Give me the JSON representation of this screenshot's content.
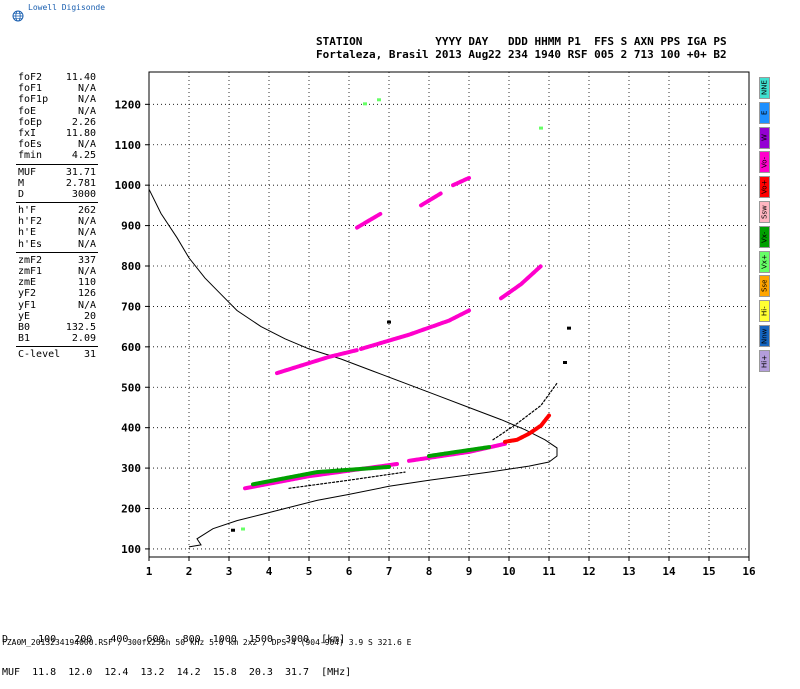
{
  "brand": {
    "name": "Lowell Digisonde"
  },
  "header": {
    "line1": "STATION           YYYY DAY   DDD HHMM P1  FFS S AXN PPS IGA PS",
    "line2": "Fortaleza, Brasil 2013 Aug22 234 1940 RSF 005 2 713 100 +0+ B2"
  },
  "params": [
    {
      "label": "foF2",
      "value": "11.40"
    },
    {
      "label": "foF1",
      "value": "N/A"
    },
    {
      "label": "foF1p",
      "value": "N/A"
    },
    {
      "label": "foE",
      "value": "N/A"
    },
    {
      "label": "foEp",
      "value": "2.26"
    },
    {
      "label": "fxI",
      "value": "11.80"
    },
    {
      "label": "foEs",
      "value": "N/A"
    },
    {
      "label": "fmin",
      "value": "4.25"
    },
    {
      "sep": true
    },
    {
      "label": "MUF",
      "value": "31.71"
    },
    {
      "label": "M",
      "value": "2.781"
    },
    {
      "label": "D",
      "value": "3000"
    },
    {
      "sep": true
    },
    {
      "label": "h'F",
      "value": "262"
    },
    {
      "label": "h'F2",
      "value": "N/A"
    },
    {
      "label": "h'E",
      "value": "N/A"
    },
    {
      "label": "h'Es",
      "value": "N/A"
    },
    {
      "sep": true
    },
    {
      "label": "zmF2",
      "value": "337"
    },
    {
      "label": "zmF1",
      "value": "N/A"
    },
    {
      "label": "zmE",
      "value": "110"
    },
    {
      "label": "yF2",
      "value": "126"
    },
    {
      "label": "yF1",
      "value": "N/A"
    },
    {
      "label": "yE",
      "value": "20"
    },
    {
      "label": "B0",
      "value": "132.5"
    },
    {
      "label": "B1",
      "value": "2.09"
    },
    {
      "sep": true
    },
    {
      "label": "C-level",
      "value": "31"
    }
  ],
  "muf_table": {
    "row1": "D     100   200   400   600   800  1000  1500  3000  [km]",
    "row2": "MUF  11.8  12.0  12.4  13.2  14.2  15.8  20.3  31.7  [MHz]"
  },
  "footer": "FZA0M_2013234194000.RSF / 300fx256h 50 kHz 5.0 km 2x2 / DPS-4 (904-904)   3.9 S 321.6 E",
  "modes": [
    {
      "label": "NNE",
      "color": "#40e0d0"
    },
    {
      "label": "E",
      "color": "#1e90ff"
    },
    {
      "label": "W",
      "color": "#9400d3"
    },
    {
      "label": "Vo-",
      "color": "#ff00cc"
    },
    {
      "label": "Vo+",
      "color": "#ff0000"
    },
    {
      "label": "Ssw",
      "color": "#ffb6c1"
    },
    {
      "label": "Vx-",
      "color": "#00a000"
    },
    {
      "label": "Vx+",
      "color": "#66ff66"
    },
    {
      "label": "Sse",
      "color": "#ffa500"
    },
    {
      "label": "Hi-",
      "color": "#ffff33"
    },
    {
      "label": "Nnw",
      "color": "#1565c0"
    },
    {
      "label": "Hi+",
      "color": "#b39ddb"
    }
  ],
  "chart_data": {
    "type": "scatter",
    "title": "",
    "xlabel": "",
    "ylabel": "",
    "xlim": [
      1,
      16
    ],
    "ylim": [
      80,
      1280
    ],
    "xticks": [
      1,
      2,
      3,
      4,
      5,
      6,
      7,
      8,
      9,
      10,
      11,
      12,
      13,
      14,
      15,
      16
    ],
    "yticks": [
      100,
      200,
      300,
      400,
      500,
      600,
      700,
      800,
      900,
      1000,
      1100,
      1200
    ],
    "grid": true,
    "series": [
      {
        "kind": "traces",
        "color": "#ff00cc",
        "segments": [
          [
            [
              3.4,
              250
            ],
            [
              5.0,
              280
            ],
            [
              7.2,
              310
            ]
          ],
          [
            [
              7.5,
              318
            ],
            [
              9.0,
              340
            ],
            [
              9.9,
              360
            ]
          ],
          [
            [
              4.2,
              535
            ],
            [
              5.5,
              575
            ],
            [
              6.2,
              592
            ]
          ],
          [
            [
              6.3,
              595
            ],
            [
              7.5,
              630
            ],
            [
              8.5,
              665
            ],
            [
              9.0,
              690
            ]
          ],
          [
            [
              9.8,
              720
            ],
            [
              10.3,
              755
            ],
            [
              10.8,
              800
            ]
          ],
          [
            [
              6.2,
              895
            ],
            [
              6.8,
              930
            ]
          ],
          [
            [
              7.8,
              950
            ],
            [
              8.3,
              980
            ]
          ],
          [
            [
              8.6,
              1000
            ],
            [
              9.0,
              1018
            ]
          ]
        ]
      },
      {
        "kind": "traces",
        "color": "#00a000",
        "segments": [
          [
            [
              3.6,
              260
            ],
            [
              5.2,
              290
            ],
            [
              7.0,
              303
            ]
          ],
          [
            [
              8.0,
              330
            ],
            [
              9.5,
              352
            ]
          ]
        ]
      },
      {
        "kind": "traces",
        "color": "#ff0000",
        "segments": [
          [
            [
              9.9,
              365
            ],
            [
              10.2,
              370
            ],
            [
              10.5,
              385
            ],
            [
              10.8,
              405
            ],
            [
              11.0,
              430
            ]
          ]
        ]
      },
      {
        "kind": "traces",
        "color": "#000000",
        "segments": [
          [
            [
              4.5,
              250
            ],
            [
              6.0,
              270
            ],
            [
              7.4,
              290
            ]
          ],
          [
            [
              9.6,
              370
            ],
            [
              10.2,
              410
            ],
            [
              10.8,
              455
            ],
            [
              11.2,
              510
            ]
          ]
        ]
      },
      {
        "kind": "points",
        "color": "#000000",
        "points": [
          [
            3.1,
            145
          ],
          [
            7.0,
            660
          ],
          [
            11.4,
            560
          ],
          [
            11.5,
            645
          ]
        ]
      },
      {
        "kind": "points",
        "color": "#66ff66",
        "points": [
          [
            3.35,
            148
          ],
          [
            10.8,
            1140
          ],
          [
            6.4,
            1200
          ],
          [
            6.75,
            1210
          ]
        ]
      }
    ],
    "profile": [
      [
        1.0,
        990
      ],
      [
        1.3,
        930
      ],
      [
        1.7,
        870
      ],
      [
        2.0,
        820
      ],
      [
        2.4,
        770
      ],
      [
        2.8,
        730
      ],
      [
        3.2,
        690
      ],
      [
        3.8,
        650
      ],
      [
        4.4,
        620
      ],
      [
        5.0,
        595
      ],
      [
        5.8,
        570
      ],
      [
        6.6,
        540
      ],
      [
        7.4,
        510
      ],
      [
        8.2,
        480
      ],
      [
        9.0,
        450
      ],
      [
        9.8,
        420
      ],
      [
        10.4,
        395
      ],
      [
        10.9,
        370
      ],
      [
        11.2,
        350
      ],
      [
        11.2,
        330
      ],
      [
        11.0,
        315
      ],
      [
        10.5,
        305
      ],
      [
        9.5,
        290
      ],
      [
        8.0,
        270
      ],
      [
        7.0,
        255
      ],
      [
        6.0,
        235
      ],
      [
        5.2,
        220
      ],
      [
        4.4,
        200
      ],
      [
        3.8,
        185
      ],
      [
        3.2,
        170
      ],
      [
        2.6,
        150
      ],
      [
        2.2,
        125
      ],
      [
        2.3,
        110
      ],
      [
        2.0,
        105
      ]
    ]
  }
}
